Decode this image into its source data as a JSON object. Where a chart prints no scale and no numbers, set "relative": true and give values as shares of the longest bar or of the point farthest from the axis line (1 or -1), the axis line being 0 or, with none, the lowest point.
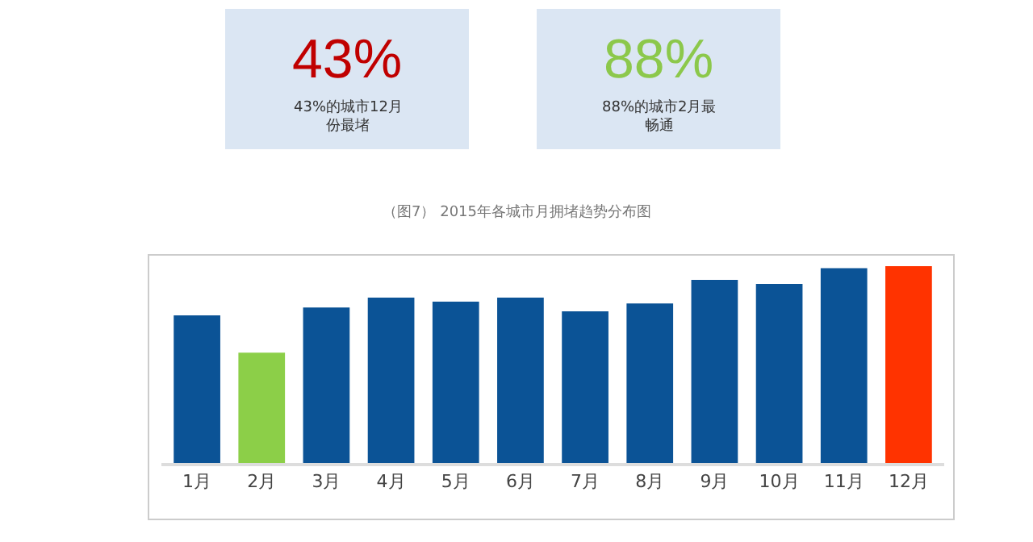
{
  "chart_data": {
    "type": "bar",
    "title": "（图7） 2015年各城市月拥堵趋势分布图",
    "relative": true,
    "categories": [
      "1月",
      "2月",
      "3月",
      "4月",
      "5月",
      "6月",
      "7月",
      "8月",
      "9月",
      "10月",
      "11月",
      "12月"
    ],
    "values": [
      0.75,
      0.56,
      0.79,
      0.84,
      0.82,
      0.84,
      0.77,
      0.81,
      0.93,
      0.91,
      0.99,
      1
    ],
    "colors": [
      "#0b5396",
      "#8ccf48",
      "#0b5396",
      "#0b5396",
      "#0b5396",
      "#0b5396",
      "#0b5396",
      "#0b5396",
      "#0b5396",
      "#0b5396",
      "#0b5396",
      "#ff3300"
    ],
    "annotations": [
      "43%",
      "43%的城市12月份最堵",
      "88%",
      "88%的城市2月最畅通"
    ]
  }
}
